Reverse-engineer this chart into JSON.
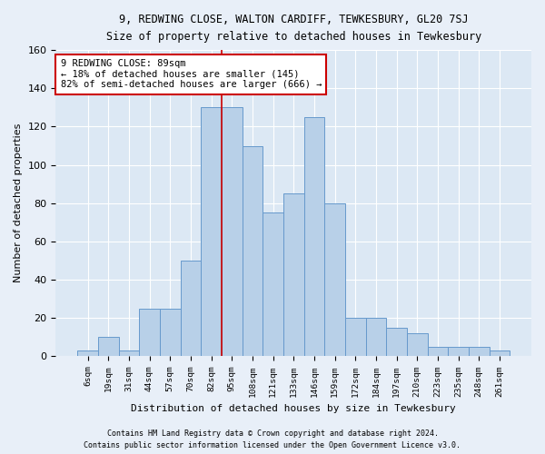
{
  "title1": "9, REDWING CLOSE, WALTON CARDIFF, TEWKESBURY, GL20 7SJ",
  "title2": "Size of property relative to detached houses in Tewkesbury",
  "xlabel": "Distribution of detached houses by size in Tewkesbury",
  "ylabel": "Number of detached properties",
  "categories": [
    "6sqm",
    "19sqm",
    "31sqm",
    "44sqm",
    "57sqm",
    "70sqm",
    "82sqm",
    "95sqm",
    "108sqm",
    "121sqm",
    "133sqm",
    "146sqm",
    "159sqm",
    "172sqm",
    "184sqm",
    "197sqm",
    "210sqm",
    "223sqm",
    "235sqm",
    "248sqm",
    "261sqm"
  ],
  "values": [
    3,
    10,
    3,
    25,
    25,
    50,
    130,
    130,
    110,
    75,
    85,
    125,
    80,
    20,
    20,
    15,
    12,
    5,
    5,
    5,
    3
  ],
  "bar_color": "#b8d0e8",
  "bar_edge_color": "#6699cc",
  "vline_index": 6,
  "vline_color": "#cc0000",
  "annotation_text": "9 REDWING CLOSE: 89sqm\n← 18% of detached houses are smaller (145)\n82% of semi-detached houses are larger (666) →",
  "annotation_box_facecolor": "#ffffff",
  "annotation_box_edgecolor": "#cc0000",
  "footer1": "Contains HM Land Registry data © Crown copyright and database right 2024.",
  "footer2": "Contains public sector information licensed under the Open Government Licence v3.0.",
  "bg_color": "#e8eff8",
  "plot_bg_color": "#dce8f4",
  "ylim": [
    0,
    160
  ],
  "yticks": [
    0,
    20,
    40,
    60,
    80,
    100,
    120,
    140,
    160
  ]
}
